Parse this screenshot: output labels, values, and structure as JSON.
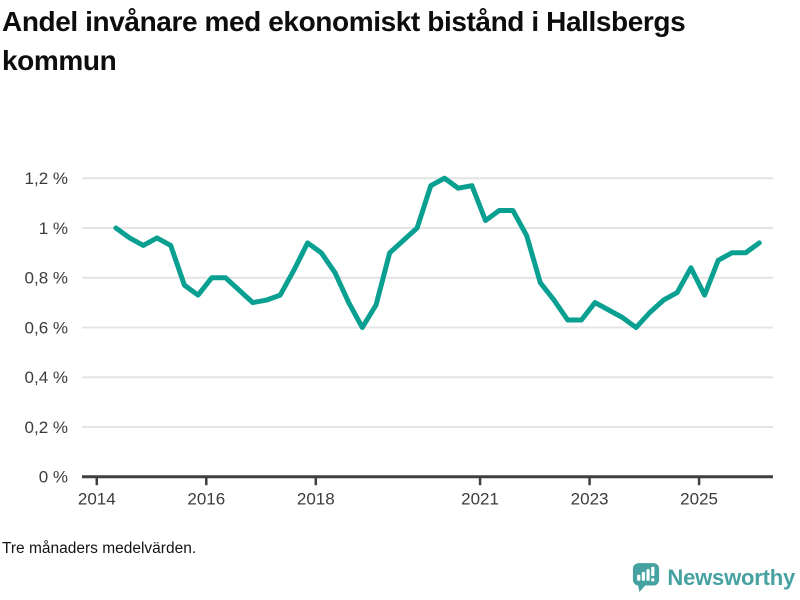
{
  "title": "Andel invånare med ekonomiskt bistånd i Hallsbergs kommun",
  "footnote": "Tre månaders medelvärden.",
  "branding": {
    "logo_text": "Newsworthy",
    "logo_icon": "newsworthy-speech-bubble-bar-chart-icon",
    "brand_color": "#45a2a0"
  },
  "chart_data": {
    "type": "line",
    "title": "Andel invånare med ekonomiskt bistånd i Hallsbergs kommun",
    "subtitle_note": "Tre månaders medelvärden.",
    "series_name": "Andel invånare med ekonomiskt bistånd",
    "unit": "%",
    "x": [
      2014.35,
      2014.6,
      2014.85,
      2015.1,
      2015.35,
      2015.6,
      2015.85,
      2016.1,
      2016.35,
      2016.6,
      2016.85,
      2017.1,
      2017.35,
      2017.6,
      2017.85,
      2018.1,
      2018.35,
      2018.6,
      2018.85,
      2019.1,
      2019.35,
      2019.6,
      2019.85,
      2020.1,
      2020.35,
      2020.6,
      2020.85,
      2021.1,
      2021.35,
      2021.6,
      2021.85,
      2022.1,
      2022.35,
      2022.6,
      2022.85,
      2023.1,
      2023.35,
      2023.6,
      2023.85,
      2024.1,
      2024.35,
      2024.6,
      2024.85,
      2025.1,
      2025.35,
      2025.6,
      2025.85,
      2026.1
    ],
    "values": [
      1.0,
      0.96,
      0.93,
      0.96,
      0.93,
      0.77,
      0.73,
      0.8,
      0.8,
      0.75,
      0.7,
      0.71,
      0.73,
      0.83,
      0.94,
      0.9,
      0.82,
      0.7,
      0.6,
      0.69,
      0.9,
      0.95,
      1.0,
      1.17,
      1.2,
      1.16,
      1.17,
      1.03,
      1.07,
      1.07,
      0.97,
      0.78,
      0.71,
      0.63,
      0.63,
      0.7,
      0.67,
      0.64,
      0.6,
      0.66,
      0.71,
      0.74,
      0.84,
      0.73,
      0.87,
      0.9,
      0.9,
      0.94
    ],
    "x_ticks": [
      {
        "v": 2014,
        "label": "2014"
      },
      {
        "v": 2016,
        "label": "2016"
      },
      {
        "v": 2018,
        "label": "2018"
      },
      {
        "v": 2021,
        "label": "2021"
      },
      {
        "v": 2023,
        "label": "2023"
      },
      {
        "v": 2025,
        "label": "2025"
      }
    ],
    "y_ticks": [
      {
        "v": 0,
        "label": "0 %"
      },
      {
        "v": 0.2,
        "label": "0,2 %"
      },
      {
        "v": 0.4,
        "label": "0,4 %"
      },
      {
        "v": 0.6,
        "label": "0,6 %"
      },
      {
        "v": 0.8,
        "label": "0,8 %"
      },
      {
        "v": 1,
        "label": "1 %"
      },
      {
        "v": 1.2,
        "label": "1,2 %"
      }
    ],
    "xlim": [
      2013.73,
      2026.35
    ],
    "ylim": [
      0,
      1.233
    ],
    "grid": "horizontal",
    "legend": "none",
    "line_color": "#0aa091",
    "grid_color": "#e4e4e4",
    "axis_color": "#3f3f3f",
    "tick_text_color": "#3c3c3c"
  }
}
